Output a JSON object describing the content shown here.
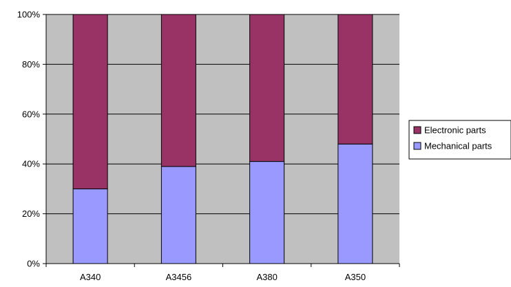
{
  "chart_data": {
    "type": "bar",
    "stacked": true,
    "normalized": true,
    "categories": [
      "A340",
      "A3456",
      "A380",
      "A350"
    ],
    "series": [
      {
        "name": "Mechanical parts",
        "color": "#9999ff",
        "values": [
          30,
          39,
          41,
          48
        ]
      },
      {
        "name": "Electronic parts",
        "color": "#993366",
        "values": [
          70,
          61,
          59,
          52
        ]
      }
    ],
    "y_ticks": [
      "0%",
      "20%",
      "40%",
      "60%",
      "80%",
      "100%"
    ],
    "ylim": [
      0,
      100
    ],
    "plot_background": "#c0c0c0",
    "grid": true,
    "legend_position": "right",
    "legend_order": [
      "Electronic parts",
      "Mechanical parts"
    ]
  }
}
